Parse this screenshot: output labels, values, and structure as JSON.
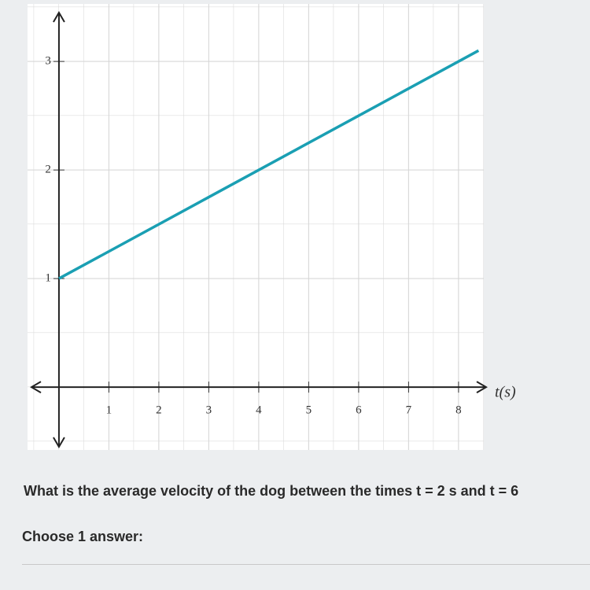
{
  "chart_data": {
    "type": "line",
    "x": [
      0,
      8.4
    ],
    "values": [
      1,
      3.1
    ],
    "color": "#1a9fb3",
    "x_label": "t(s)",
    "xlim": [
      -0.55,
      8.6
    ],
    "xticks": [
      1,
      2,
      3,
      4,
      5,
      6,
      7,
      8
    ],
    "ylim": [
      -0.55,
      3.45
    ],
    "yticks": [
      1,
      2,
      3
    ],
    "grid": true
  },
  "question": {
    "text": "What is the average velocity of the dog between the times t = 2 s and t = 6",
    "prompt": "Choose 1 answer:"
  }
}
